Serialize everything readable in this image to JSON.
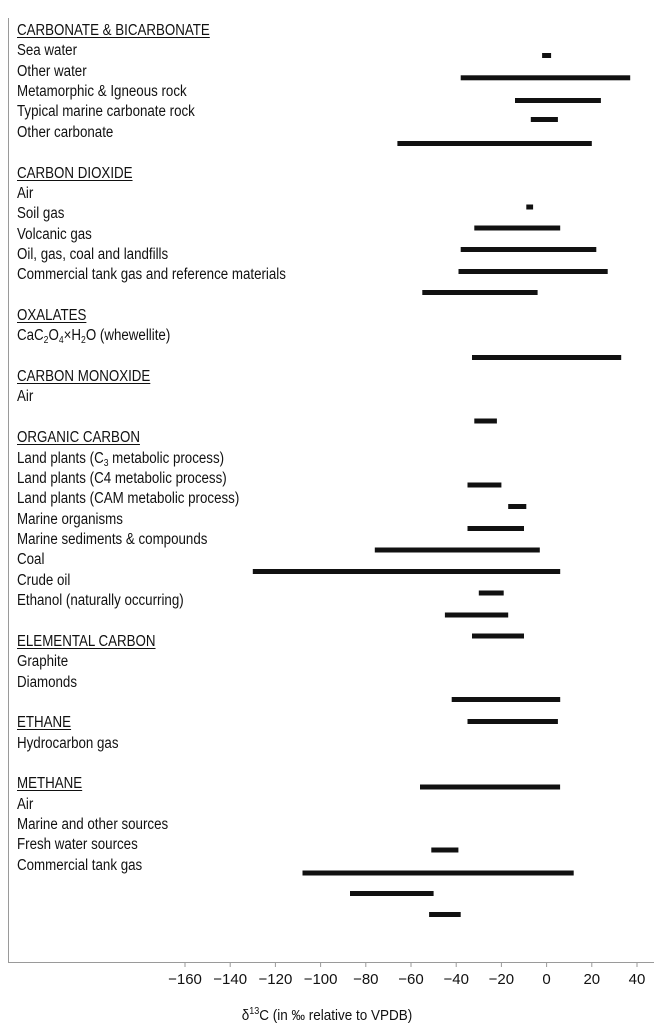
{
  "chart_data": {
    "type": "range-bar",
    "xlabel": "δ13C (in ‰ relative to VPDB)",
    "xlabel_prefix": "δ",
    "xlabel_sup": "13",
    "xlabel_rest": "C (in ‰ relative to VPDB)",
    "xlim": [
      -175,
      45
    ],
    "xticks": [
      -160,
      -140,
      -120,
      -100,
      -80,
      -60,
      -40,
      -20,
      0,
      20,
      40
    ],
    "xtick_labels": [
      "−160",
      "−140",
      "−120",
      "−100",
      "−80",
      "−60",
      "−40",
      "−20",
      "0",
      "20",
      "40"
    ],
    "grid": false,
    "groups": [
      {
        "title": "CARBONATE & BICARBONATE",
        "items": [
          {
            "label": "Sea water",
            "range": [
              -2,
              2
            ]
          },
          {
            "label": "Other water",
            "range": [
              -38,
              37
            ]
          },
          {
            "label": "Metamorphic & Igneous rock",
            "range": [
              -14,
              24
            ]
          },
          {
            "label": "Typical marine carbonate rock",
            "range": [
              -7,
              5
            ]
          },
          {
            "label": "Other carbonate",
            "range": [
              -66,
              20
            ]
          }
        ]
      },
      {
        "title": "CARBON DIOXIDE",
        "items": [
          {
            "label": "Air",
            "range": [
              -9,
              -6
            ]
          },
          {
            "label": "Soil gas",
            "range": [
              -32,
              6
            ]
          },
          {
            "label": "Volcanic gas",
            "range": [
              -38,
              22
            ]
          },
          {
            "label": "Oil, gas, coal and landfills",
            "range": [
              -39,
              27
            ]
          },
          {
            "label": "Commercial tank gas and reference materials",
            "range": [
              -55,
              -4
            ]
          }
        ]
      },
      {
        "title": "OXALATES",
        "items": [
          {
            "label": "CaC2O4×H2O (whewellite)",
            "range": [
              -33,
              33
            ]
          }
        ]
      },
      {
        "title": "CARBON MONOXIDE",
        "items": [
          {
            "label": "Air",
            "range": [
              -32,
              -22
            ]
          }
        ]
      },
      {
        "title": "ORGANIC CARBON",
        "items": [
          {
            "label": "Land plants (C3 metabolic process)",
            "range": [
              -35,
              -20
            ]
          },
          {
            "label": "Land plants (C4 metabolic process)",
            "range": [
              -17,
              -9
            ]
          },
          {
            "label": "Land plants (CAM metabolic process)",
            "range": [
              -35,
              -10
            ]
          },
          {
            "label": "Marine organisms",
            "range": [
              -76,
              -3
            ]
          },
          {
            "label": "Marine sediments & compounds",
            "range": [
              -130,
              6
            ]
          },
          {
            "label": "Coal",
            "range": [
              -30,
              -19
            ]
          },
          {
            "label": "Crude oil",
            "range": [
              -45,
              -17
            ]
          },
          {
            "label": "Ethanol (naturally occurring)",
            "range": [
              -33,
              -10
            ]
          }
        ]
      },
      {
        "title": "ELEMENTAL CARBON",
        "items": [
          {
            "label": "Graphite",
            "range": [
              -42,
              6
            ]
          },
          {
            "label": "Diamonds",
            "range": [
              -35,
              5
            ]
          }
        ]
      },
      {
        "title": "ETHANE",
        "items": [
          {
            "label": "Hydrocarbon gas",
            "range": [
              -56,
              6
            ]
          }
        ]
      },
      {
        "title": "METHANE",
        "items": [
          {
            "label": "Air",
            "range": [
              -51,
              -39
            ]
          },
          {
            "label": "Marine and other sources",
            "range": [
              -108,
              12
            ]
          },
          {
            "label": "Fresh water sources",
            "range": [
              -87,
              -50
            ]
          },
          {
            "label": "Commercial tank gas",
            "range": [
              -52,
              -38
            ]
          }
        ]
      }
    ]
  }
}
